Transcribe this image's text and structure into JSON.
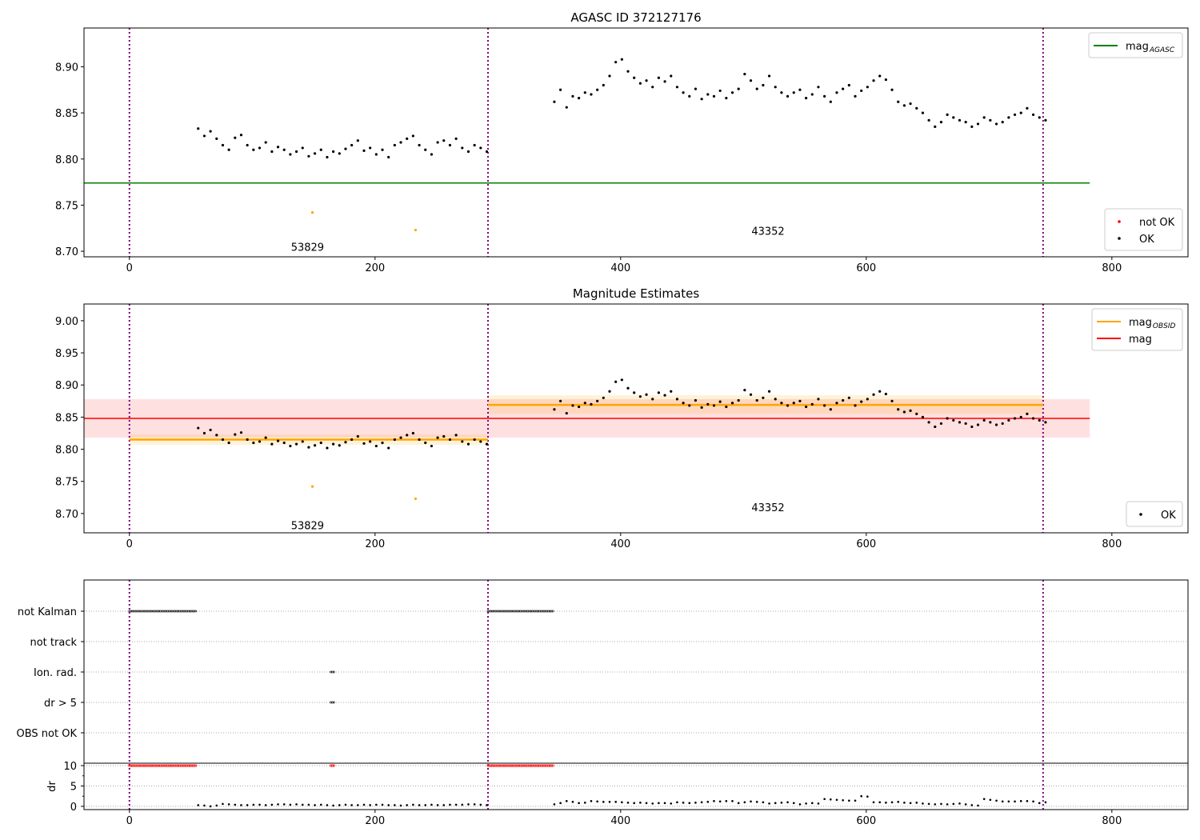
{
  "chart_data": [
    {
      "type": "scatter",
      "title": "AGASC ID 372127176",
      "xlim": [
        -37,
        862
      ],
      "ylim": [
        8.694,
        8.942
      ],
      "xticks": [
        0,
        200,
        400,
        600,
        800
      ],
      "yticks": [
        "8.70",
        "8.75",
        "8.80",
        "8.85",
        "8.90"
      ],
      "obsid_boundaries": [
        0,
        292,
        744
      ],
      "obsid_labels": [
        {
          "text": "53829",
          "x": 145,
          "y": 8.705
        },
        {
          "text": "43352",
          "x": 520,
          "y": 8.722
        }
      ],
      "mag_agasc": {
        "value": 8.774,
        "x_range": [
          -37,
          782
        ],
        "color": "#008000"
      },
      "legend_top": [
        {
          "label": "mag",
          "sub": "AGASC",
          "color": "#008000"
        }
      ],
      "legend_bottom": [
        {
          "label": "not OK",
          "color": "#ff0000"
        },
        {
          "label": "OK",
          "color": "#000000"
        }
      ]
    },
    {
      "type": "scatter",
      "title": "Magnitude Estimates",
      "xlim": [
        -37,
        862
      ],
      "ylim": [
        8.67,
        9.026
      ],
      "xticks": [
        0,
        200,
        400,
        600,
        800
      ],
      "yticks": [
        "8.70",
        "8.75",
        "8.80",
        "8.85",
        "8.90",
        "8.95",
        "9.00"
      ],
      "obsid_labels": [
        {
          "text": "53829",
          "x": 145,
          "y": 8.682
        },
        {
          "text": "43352",
          "x": 520,
          "y": 8.71
        }
      ],
      "mag": {
        "value": 8.848,
        "low": 8.818,
        "high": 8.878,
        "x_range": [
          -37,
          782
        ],
        "color": "#ff0000"
      },
      "mag_obsid": [
        {
          "value": 8.815,
          "low": 8.807,
          "high": 8.823,
          "x_range": [
            0,
            292
          ]
        },
        {
          "value": 8.869,
          "low": 8.855,
          "high": 8.884,
          "x_range": [
            292,
            744
          ]
        }
      ],
      "legend_top": [
        {
          "label": "mag",
          "sub": "OBSID",
          "color": "#ffa500"
        },
        {
          "label": "mag",
          "sub": "",
          "color": "#ff0000"
        }
      ],
      "legend_bottom": [
        {
          "label": "OK",
          "color": "#000000"
        }
      ]
    },
    {
      "type": "scatter",
      "flags": [
        "not Kalman",
        "not track",
        "Ion. rad.",
        "dr > 5",
        "OBS not OK"
      ],
      "flag_ranges": {
        "not Kalman": [
          [
            0,
            55
          ],
          [
            292,
            345
          ]
        ],
        "not track": [],
        "Ion. rad.": [
          [
            164,
            167
          ]
        ],
        "dr > 5": [
          [
            164,
            167
          ]
        ],
        "OBS not OK": []
      },
      "dr_ylabel": "dr",
      "dr_ylim": [
        -0.8,
        10.6
      ],
      "dr_yticks": [
        "0",
        "5",
        "10"
      ],
      "dr_clipped": {
        "value": 10,
        "ranges": [
          [
            0,
            55
          ],
          [
            164,
            167
          ],
          [
            292,
            345
          ]
        ],
        "color": "#ff0000"
      },
      "xticks": [
        0,
        200,
        400,
        600,
        800
      ]
    }
  ],
  "series": {
    "seg1": {
      "x_start": 56,
      "x_step": 5,
      "mag": [
        8.833,
        8.825,
        8.83,
        8.822,
        8.815,
        8.81,
        8.823,
        8.826,
        8.815,
        8.81,
        8.812,
        8.818,
        8.808,
        8.813,
        8.81,
        8.805,
        8.808,
        8.812,
        8.803,
        8.806,
        8.81,
        8.802,
        8.808,
        8.806,
        8.811,
        8.815,
        8.82,
        8.809,
        8.812,
        8.805,
        8.81,
        8.802,
        8.815,
        8.818,
        8.822,
        8.825,
        8.815,
        8.81,
        8.805,
        8.818,
        8.82,
        8.815,
        8.822,
        8.812,
        8.808,
        8.815,
        8.812,
        8.808
      ],
      "dr": [
        0.3,
        0.2,
        0.0,
        0.2,
        0.6,
        0.5,
        0.4,
        0.3,
        0.3,
        0.4,
        0.4,
        0.3,
        0.4,
        0.5,
        0.5,
        0.4,
        0.5,
        0.4,
        0.4,
        0.3,
        0.4,
        0.3,
        0.2,
        0.3,
        0.4,
        0.3,
        0.3,
        0.4,
        0.3,
        0.4,
        0.4,
        0.3,
        0.3,
        0.2,
        0.3,
        0.4,
        0.3,
        0.3,
        0.4,
        0.3,
        0.3,
        0.4,
        0.4,
        0.4,
        0.5,
        0.5,
        0.4,
        0.3
      ]
    },
    "seg2": {
      "x_start": 346,
      "x_step": 5,
      "mag": [
        8.862,
        8.875,
        8.856,
        8.868,
        8.866,
        8.872,
        8.87,
        8.875,
        8.88,
        8.89,
        8.905,
        8.908,
        8.895,
        8.888,
        8.882,
        8.885,
        8.878,
        8.888,
        8.884,
        8.89,
        8.878,
        8.872,
        8.868,
        8.876,
        8.865,
        8.87,
        8.868,
        8.874,
        8.866,
        8.872,
        8.876,
        8.892,
        8.885,
        8.876,
        8.88,
        8.89,
        8.878,
        8.872,
        8.868,
        8.872,
        8.875,
        8.866,
        8.87,
        8.878,
        8.868,
        8.862,
        8.872,
        8.876,
        8.88,
        8.868,
        8.874,
        8.878,
        8.885,
        8.89,
        8.886,
        8.875,
        8.862,
        8.858,
        8.86,
        8.855,
        8.85,
        8.842,
        8.835,
        8.84,
        8.848,
        8.845,
        8.842,
        8.84,
        8.835,
        8.838,
        8.845,
        8.842,
        8.838,
        8.84,
        8.845,
        8.848,
        8.85,
        8.855,
        8.848,
        8.845,
        8.842
      ],
      "dr": [
        0.5,
        0.8,
        1.3,
        1.1,
        0.8,
        0.9,
        1.3,
        1.2,
        1.1,
        1.1,
        1.1,
        1.0,
        0.9,
        0.8,
        0.9,
        0.8,
        0.7,
        0.8,
        0.8,
        0.7,
        1.0,
        0.9,
        0.8,
        0.9,
        1.0,
        1.1,
        1.3,
        1.2,
        1.3,
        1.3,
        0.8,
        1.0,
        1.2,
        1.1,
        1.0,
        0.7,
        0.8,
        0.9,
        1.0,
        0.8,
        0.5,
        0.7,
        0.8,
        0.7,
        1.8,
        1.7,
        1.6,
        1.5,
        1.4,
        1.4,
        2.5,
        2.4,
        1.0,
        1.0,
        0.9,
        1.0,
        1.1,
        0.9,
        0.8,
        0.9,
        0.7,
        0.6,
        0.5,
        0.6,
        0.5,
        0.6,
        0.7,
        0.5,
        0.3,
        0.2,
        1.8,
        1.6,
        1.4,
        1.2,
        1.2,
        1.2,
        1.3,
        1.3,
        1.2,
        0.8,
        1.0
      ]
    },
    "orange_points": [
      {
        "x": 149,
        "y": 8.742
      },
      {
        "x": 233,
        "y": 8.723
      }
    ]
  }
}
